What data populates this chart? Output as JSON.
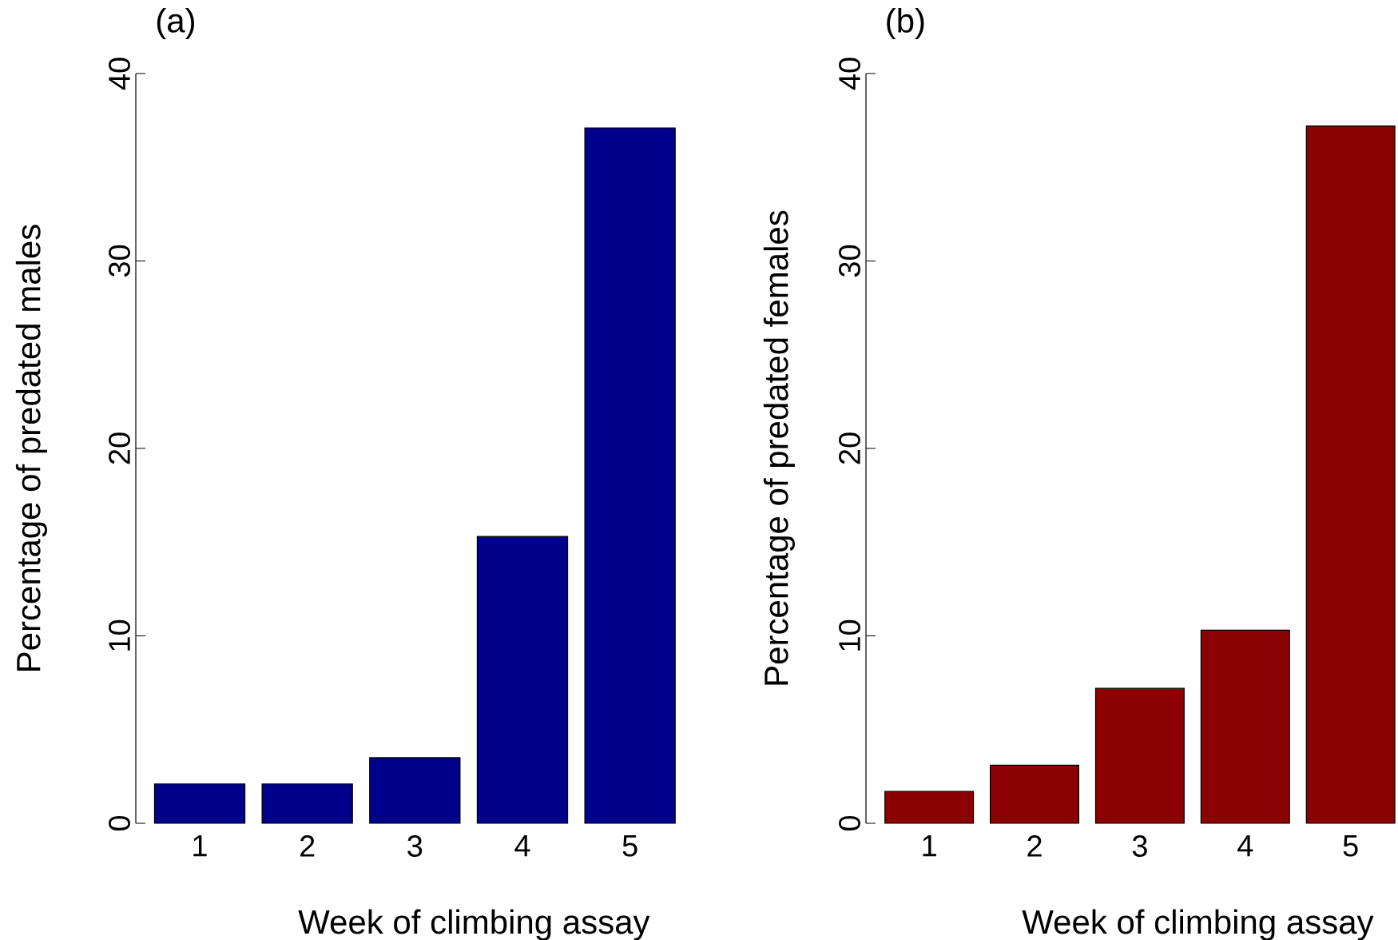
{
  "chart_data": [
    {
      "type": "bar",
      "title": "(a)",
      "xlabel": "Week of climbing assay",
      "ylabel": "Percentage of predated males",
      "categories": [
        "1",
        "2",
        "3",
        "4",
        "5"
      ],
      "values": [
        2.1,
        2.1,
        3.5,
        15.3,
        37.1
      ],
      "color": "#00008b",
      "ylim": [
        0,
        40
      ],
      "yticks": [
        0,
        10,
        20,
        30,
        40
      ]
    },
    {
      "type": "bar",
      "title": "(b)",
      "xlabel": "Week of climbing assay",
      "ylabel": "Percentage of predated females",
      "categories": [
        "1",
        "2",
        "3",
        "4",
        "5"
      ],
      "values": [
        1.7,
        3.1,
        7.2,
        10.3,
        37.2
      ],
      "color": "#8b0000",
      "ylim": [
        0,
        40
      ],
      "yticks": [
        0,
        10,
        20,
        30,
        40
      ]
    }
  ]
}
